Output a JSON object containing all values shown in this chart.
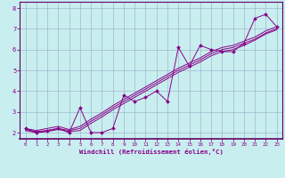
{
  "title": "",
  "xlabel": "Windchill (Refroidissement éolien,°C)",
  "background_color": "#c8eef0",
  "grid_color": "#a0b8cc",
  "line_color": "#880088",
  "spine_color": "#660066",
  "xlim": [
    -0.5,
    23.5
  ],
  "ylim": [
    1.7,
    8.3
  ],
  "xticks": [
    0,
    1,
    2,
    3,
    4,
    5,
    6,
    7,
    8,
    9,
    10,
    11,
    12,
    13,
    14,
    15,
    16,
    17,
    18,
    19,
    20,
    21,
    22,
    23
  ],
  "yticks": [
    2,
    3,
    4,
    5,
    6,
    7,
    8
  ],
  "series1_x": [
    0,
    1,
    2,
    3,
    4,
    5,
    6,
    7,
    8,
    9,
    10,
    11,
    12,
    13,
    14,
    15,
    16,
    17,
    18,
    19,
    20,
    21,
    22,
    23
  ],
  "series1_y": [
    2.2,
    2.0,
    2.1,
    2.2,
    2.0,
    3.2,
    2.0,
    2.0,
    2.2,
    3.8,
    3.5,
    3.7,
    4.0,
    3.5,
    6.1,
    5.2,
    6.2,
    6.0,
    5.9,
    5.9,
    6.3,
    7.5,
    7.7,
    7.1
  ],
  "series2_x": [
    0,
    1,
    2,
    3,
    4,
    5,
    6,
    7,
    8,
    9,
    10,
    11,
    12,
    13,
    14,
    15,
    16,
    17,
    18,
    19,
    20,
    21,
    22,
    23
  ],
  "series2_y": [
    2.15,
    2.05,
    2.1,
    2.2,
    2.1,
    2.2,
    2.55,
    2.85,
    3.2,
    3.5,
    3.8,
    4.1,
    4.4,
    4.7,
    5.0,
    5.25,
    5.5,
    5.8,
    6.0,
    6.1,
    6.3,
    6.5,
    6.8,
    7.0
  ],
  "series3_x": [
    0,
    1,
    2,
    3,
    4,
    5,
    6,
    7,
    8,
    9,
    10,
    11,
    12,
    13,
    14,
    15,
    16,
    17,
    18,
    19,
    20,
    21,
    22,
    23
  ],
  "series3_y": [
    2.2,
    2.1,
    2.2,
    2.3,
    2.15,
    2.3,
    2.65,
    2.95,
    3.3,
    3.6,
    3.9,
    4.2,
    4.5,
    4.8,
    5.1,
    5.35,
    5.6,
    5.9,
    6.1,
    6.2,
    6.4,
    6.6,
    6.9,
    7.1
  ],
  "series4_x": [
    0,
    1,
    2,
    3,
    4,
    5,
    6,
    7,
    8,
    9,
    10,
    11,
    12,
    13,
    14,
    15,
    16,
    17,
    18,
    19,
    20,
    21,
    22,
    23
  ],
  "series4_y": [
    2.1,
    2.0,
    2.05,
    2.15,
    2.05,
    2.1,
    2.45,
    2.75,
    3.1,
    3.4,
    3.7,
    4.0,
    4.3,
    4.6,
    4.9,
    5.15,
    5.4,
    5.7,
    5.9,
    6.0,
    6.2,
    6.45,
    6.75,
    6.95
  ]
}
